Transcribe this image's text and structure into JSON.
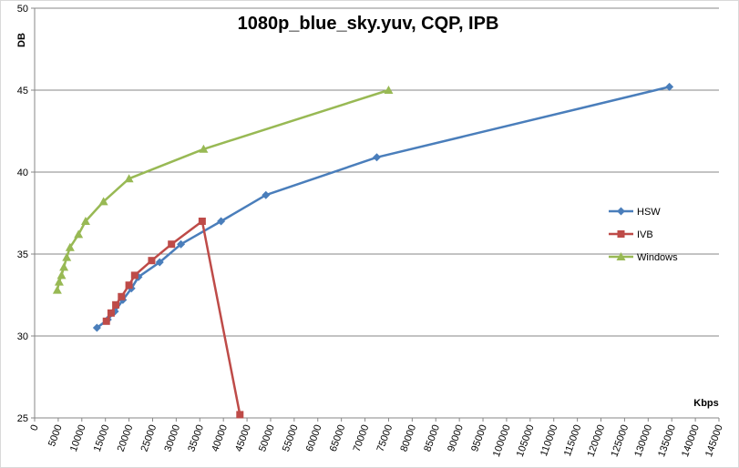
{
  "chart_data": {
    "type": "line",
    "title": "1080p_blue_sky.yuv, CQP, IPB",
    "xlabel": "Kbps",
    "ylabel": "DB",
    "xlim": [
      0,
      145000
    ],
    "ylim": [
      25,
      50
    ],
    "xticks": [
      0,
      5000,
      10000,
      15000,
      20000,
      25000,
      30000,
      35000,
      40000,
      45000,
      50000,
      55000,
      60000,
      65000,
      70000,
      75000,
      80000,
      85000,
      90000,
      95000,
      100000,
      105000,
      110000,
      115000,
      120000,
      125000,
      130000,
      135000,
      140000,
      145000
    ],
    "yticks": [
      25,
      30,
      35,
      40,
      45,
      50
    ],
    "grid": "horizontal",
    "legend_position": "right",
    "series": [
      {
        "name": "HSW",
        "color": "#4a7ebb",
        "marker": "diamond",
        "points": [
          [
            13200,
            30.5
          ],
          [
            15500,
            31.0
          ],
          [
            17000,
            31.5
          ],
          [
            18700,
            32.2
          ],
          [
            20500,
            32.9
          ],
          [
            22000,
            33.6
          ],
          [
            26500,
            34.5
          ],
          [
            31000,
            35.6
          ],
          [
            39500,
            37.0
          ],
          [
            49000,
            38.6
          ],
          [
            72500,
            40.9
          ],
          [
            134500,
            45.2
          ]
        ]
      },
      {
        "name": "IVB",
        "color": "#be4b48",
        "marker": "square",
        "points": [
          [
            15200,
            30.9
          ],
          [
            16200,
            31.4
          ],
          [
            17200,
            31.9
          ],
          [
            18400,
            32.4
          ],
          [
            20000,
            33.1
          ],
          [
            21200,
            33.7
          ],
          [
            24800,
            34.6
          ],
          [
            29000,
            35.6
          ],
          [
            35500,
            37.0
          ],
          [
            43500,
            25.2
          ]
        ]
      },
      {
        "name": "Windows",
        "color": "#98b954",
        "marker": "triangle",
        "points": [
          [
            4800,
            32.8
          ],
          [
            5200,
            33.3
          ],
          [
            5700,
            33.7
          ],
          [
            6200,
            34.2
          ],
          [
            6800,
            34.8
          ],
          [
            7500,
            35.4
          ],
          [
            9300,
            36.2
          ],
          [
            10800,
            37.0
          ],
          [
            14600,
            38.2
          ],
          [
            20000,
            39.6
          ],
          [
            35800,
            41.4
          ],
          [
            75000,
            45.0
          ]
        ]
      }
    ]
  }
}
